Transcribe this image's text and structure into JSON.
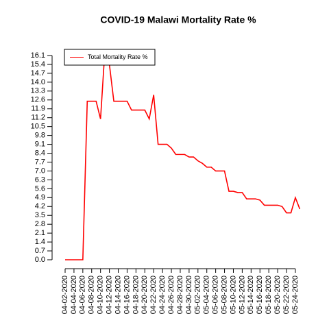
{
  "chart_data": {
    "type": "line",
    "title": "COVID-19 Malawi Mortality Rate %",
    "categories": [
      "04-02-2020",
      null,
      "04-04-2020",
      null,
      "04-06-2020",
      null,
      "04-08-2020",
      null,
      "04-10-2020",
      null,
      "04-12-2020",
      null,
      "04-14-2020",
      null,
      "04-16-2020",
      null,
      "04-18-2020",
      null,
      "04-20-2020",
      null,
      "04-22-2020",
      null,
      "04-24-2020",
      null,
      "04-26-2020",
      null,
      "04-28-2020",
      null,
      "04-30-2020",
      null,
      "05-02-2020",
      null,
      "05-04-2020",
      null,
      "05-06-2020",
      null,
      "05-08-2020",
      null,
      "05-10-2020",
      null,
      "05-12-2020",
      null,
      "05-14-2020",
      null,
      "05-16-2020",
      null,
      "05-18-2020",
      null,
      "05-20-2020",
      null,
      "05-22-2020",
      null,
      "05-24-2020",
      null
    ],
    "series": [
      {
        "name": "Total Mortality Rate %",
        "color": "#ff0000",
        "values": [
          0,
          0,
          0,
          0,
          0,
          12.5,
          12.5,
          12.5,
          11.1,
          16.6,
          15.4,
          12.5,
          12.5,
          12.5,
          12.5,
          11.8,
          11.8,
          11.8,
          11.8,
          11.1,
          13.0,
          9.1,
          9.1,
          9.1,
          8.8,
          8.3,
          8.3,
          8.3,
          8.1,
          8.1,
          7.8,
          7.6,
          7.3,
          7.3,
          7.0,
          7.0,
          7.0,
          5.4,
          5.4,
          5.3,
          5.3,
          4.8,
          4.8,
          4.8,
          4.7,
          4.3,
          4.3,
          4.3,
          4.3,
          4.2,
          3.7,
          3.7,
          4.9,
          4.0
        ]
      }
    ],
    "ylim": [
      -0.67,
      17.3
    ],
    "yticks": [
      {
        "value": 0,
        "label": "0.0"
      },
      0.7,
      1.4,
      2.1,
      2.8,
      3.5,
      4.2,
      4.9,
      5.6,
      6.3,
      {
        "value": 7,
        "label": "7.0"
      },
      7.7,
      8.4,
      9.1,
      9.8,
      10.5,
      11.2,
      11.9,
      12.6,
      13.3,
      {
        "value": 14,
        "label": "14.0"
      },
      14.7,
      15.4,
      16.1
    ],
    "legend": "topleft"
  }
}
